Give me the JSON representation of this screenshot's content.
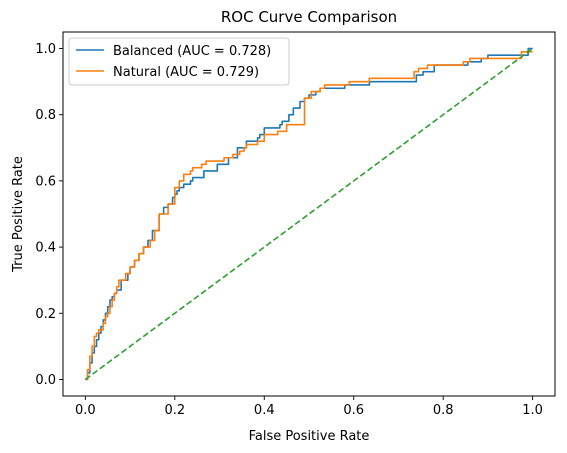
{
  "chart_data": {
    "type": "line",
    "title": "ROC Curve Comparison",
    "xlabel": "False Positive Rate",
    "ylabel": "True Positive Rate",
    "xlim": [
      -0.05,
      1.05
    ],
    "ylim": [
      -0.05,
      1.05
    ],
    "xticks": [
      "0.0",
      "0.2",
      "0.4",
      "0.6",
      "0.8",
      "1.0"
    ],
    "yticks": [
      "0.0",
      "0.2",
      "0.4",
      "0.6",
      "0.8",
      "1.0"
    ],
    "grid": false,
    "legend_position": "top-left",
    "series": [
      {
        "name": "Balanced (AUC = 0.728)",
        "color": "#1f77b4",
        "style": "solid",
        "x": [
          0.0,
          0.005,
          0.005,
          0.01,
          0.01,
          0.015,
          0.015,
          0.02,
          0.02,
          0.025,
          0.025,
          0.03,
          0.03,
          0.035,
          0.035,
          0.04,
          0.04,
          0.045,
          0.045,
          0.05,
          0.05,
          0.055,
          0.055,
          0.06,
          0.06,
          0.065,
          0.065,
          0.07,
          0.07,
          0.08,
          0.08,
          0.095,
          0.095,
          0.1,
          0.1,
          0.11,
          0.11,
          0.12,
          0.12,
          0.13,
          0.13,
          0.14,
          0.14,
          0.15,
          0.15,
          0.165,
          0.165,
          0.175,
          0.175,
          0.185,
          0.185,
          0.195,
          0.195,
          0.2,
          0.2,
          0.205,
          0.205,
          0.21,
          0.21,
          0.22,
          0.22,
          0.235,
          0.235,
          0.24,
          0.24,
          0.265,
          0.265,
          0.295,
          0.295,
          0.32,
          0.32,
          0.34,
          0.34,
          0.36,
          0.36,
          0.385,
          0.385,
          0.39,
          0.39,
          0.4,
          0.4,
          0.435,
          0.435,
          0.44,
          0.44,
          0.455,
          0.455,
          0.465,
          0.465,
          0.48,
          0.48,
          0.49,
          0.49,
          0.5,
          0.5,
          0.515,
          0.515,
          0.525,
          0.525,
          0.58,
          0.58,
          0.635,
          0.635,
          0.74,
          0.74,
          0.755,
          0.755,
          0.78,
          0.78,
          0.855,
          0.855,
          0.885,
          0.885,
          0.9,
          0.9,
          0.99,
          0.99,
          1.0
        ],
        "y": [
          0.0,
          0.0,
          0.02,
          0.02,
          0.05,
          0.05,
          0.08,
          0.08,
          0.1,
          0.1,
          0.12,
          0.12,
          0.14,
          0.14,
          0.16,
          0.16,
          0.18,
          0.18,
          0.2,
          0.2,
          0.22,
          0.22,
          0.24,
          0.24,
          0.25,
          0.25,
          0.26,
          0.26,
          0.27,
          0.27,
          0.3,
          0.3,
          0.32,
          0.32,
          0.34,
          0.34,
          0.36,
          0.36,
          0.38,
          0.38,
          0.4,
          0.4,
          0.42,
          0.42,
          0.45,
          0.45,
          0.5,
          0.5,
          0.52,
          0.52,
          0.53,
          0.53,
          0.55,
          0.55,
          0.56,
          0.56,
          0.57,
          0.57,
          0.58,
          0.58,
          0.59,
          0.59,
          0.6,
          0.6,
          0.61,
          0.61,
          0.63,
          0.63,
          0.65,
          0.65,
          0.67,
          0.67,
          0.7,
          0.7,
          0.72,
          0.72,
          0.73,
          0.73,
          0.74,
          0.74,
          0.76,
          0.76,
          0.77,
          0.77,
          0.78,
          0.78,
          0.8,
          0.8,
          0.82,
          0.82,
          0.84,
          0.84,
          0.85,
          0.85,
          0.86,
          0.86,
          0.87,
          0.87,
          0.88,
          0.88,
          0.89,
          0.89,
          0.9,
          0.9,
          0.92,
          0.92,
          0.93,
          0.93,
          0.95,
          0.95,
          0.96,
          0.96,
          0.97,
          0.97,
          0.98,
          0.98,
          1.0,
          1.0
        ]
      },
      {
        "name": "Natural (AUC = 0.729)",
        "color": "#ff7f0e",
        "style": "solid",
        "x": [
          0.0,
          0.005,
          0.005,
          0.01,
          0.01,
          0.015,
          0.015,
          0.02,
          0.02,
          0.025,
          0.025,
          0.03,
          0.03,
          0.04,
          0.04,
          0.045,
          0.045,
          0.05,
          0.05,
          0.055,
          0.055,
          0.06,
          0.06,
          0.065,
          0.065,
          0.07,
          0.07,
          0.075,
          0.075,
          0.09,
          0.09,
          0.1,
          0.1,
          0.11,
          0.11,
          0.12,
          0.12,
          0.13,
          0.13,
          0.145,
          0.145,
          0.155,
          0.155,
          0.165,
          0.165,
          0.185,
          0.185,
          0.2,
          0.2,
          0.21,
          0.21,
          0.22,
          0.22,
          0.235,
          0.235,
          0.24,
          0.24,
          0.26,
          0.26,
          0.27,
          0.27,
          0.31,
          0.31,
          0.33,
          0.33,
          0.345,
          0.345,
          0.355,
          0.355,
          0.36,
          0.36,
          0.385,
          0.385,
          0.4,
          0.4,
          0.43,
          0.43,
          0.45,
          0.45,
          0.49,
          0.49,
          0.505,
          0.505,
          0.525,
          0.525,
          0.535,
          0.535,
          0.59,
          0.59,
          0.635,
          0.635,
          0.735,
          0.735,
          0.745,
          0.745,
          0.765,
          0.765,
          0.845,
          0.845,
          0.86,
          0.86,
          0.975,
          0.975,
          1.0
        ],
        "y": [
          0.0,
          0.0,
          0.03,
          0.03,
          0.07,
          0.07,
          0.1,
          0.1,
          0.13,
          0.13,
          0.14,
          0.14,
          0.15,
          0.15,
          0.17,
          0.17,
          0.19,
          0.19,
          0.2,
          0.2,
          0.22,
          0.22,
          0.24,
          0.24,
          0.26,
          0.26,
          0.28,
          0.28,
          0.3,
          0.3,
          0.32,
          0.32,
          0.34,
          0.34,
          0.36,
          0.36,
          0.38,
          0.38,
          0.4,
          0.4,
          0.42,
          0.42,
          0.45,
          0.45,
          0.5,
          0.5,
          0.53,
          0.53,
          0.58,
          0.58,
          0.6,
          0.6,
          0.62,
          0.62,
          0.63,
          0.63,
          0.64,
          0.64,
          0.65,
          0.65,
          0.66,
          0.66,
          0.67,
          0.67,
          0.68,
          0.68,
          0.69,
          0.69,
          0.7,
          0.7,
          0.71,
          0.71,
          0.72,
          0.72,
          0.74,
          0.74,
          0.75,
          0.75,
          0.77,
          0.77,
          0.85,
          0.85,
          0.87,
          0.87,
          0.88,
          0.88,
          0.89,
          0.89,
          0.9,
          0.9,
          0.91,
          0.91,
          0.93,
          0.93,
          0.94,
          0.94,
          0.95,
          0.95,
          0.96,
          0.96,
          0.97,
          0.97,
          0.99,
          0.99
        ]
      },
      {
        "name": "",
        "color": "#2ca02c",
        "style": "dashed",
        "legend": false,
        "x": [
          0.0,
          1.0
        ],
        "y": [
          0.0,
          1.0
        ]
      }
    ]
  }
}
